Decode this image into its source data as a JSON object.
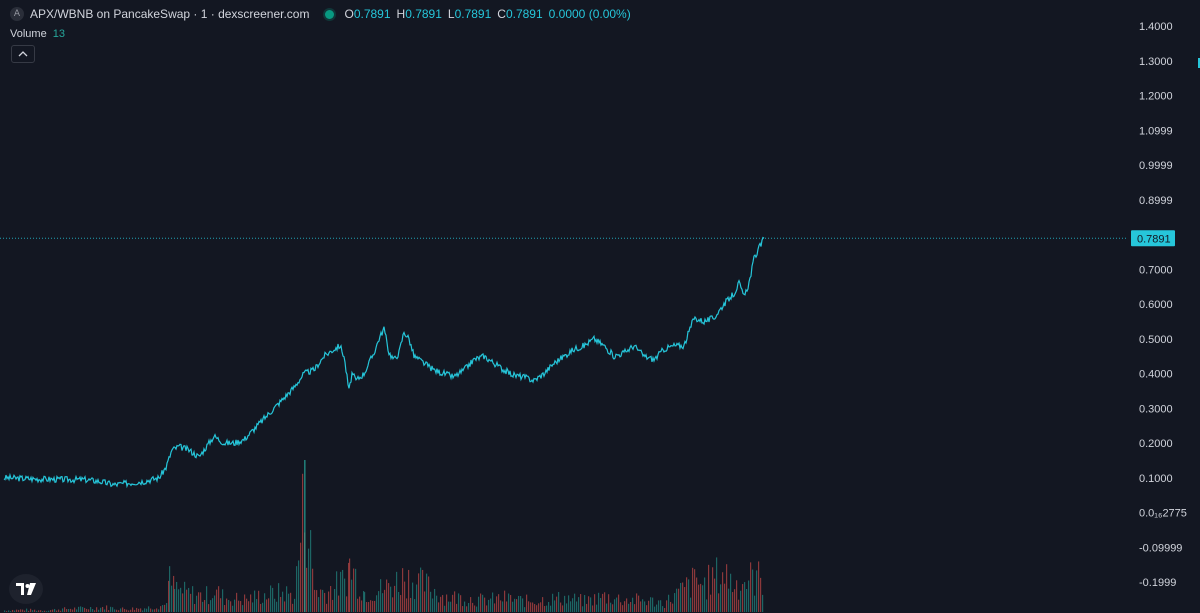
{
  "header": {
    "symbol_badge": "A",
    "title": "APX/WBNB on PancakeSwap · 1 · dexscreener.com",
    "ohlc": [
      {
        "key": "O",
        "value": "0.7891"
      },
      {
        "key": "H",
        "value": "0.7891"
      },
      {
        "key": "L",
        "value": "0.7891"
      },
      {
        "key": "C",
        "value": "0.7891"
      }
    ],
    "change": "0.0000 (0.00%)"
  },
  "volume_legend": {
    "label": "Volume",
    "value": "13"
  },
  "colors": {
    "background": "#131722",
    "price_line": "#26c6da",
    "up": "#26a69a",
    "down": "#ef5350",
    "grid": "#1e2230",
    "axis_text": "#d1d4dc"
  },
  "icons": {
    "collapse": "chevron-up-icon",
    "logo": "tradingview-logo-icon"
  },
  "chart_data": {
    "type": "line",
    "title": "APX/WBNB on PancakeSwap · 1 · dexscreener.com",
    "last_price": "0.7891",
    "y_ticks": [
      "1.4000",
      "1.3000",
      "1.2000",
      "1.0999",
      "0.9999",
      "0.8999",
      "0.7000",
      "0.6000",
      "0.5000",
      "0.4000",
      "0.3000",
      "0.2000",
      "0.1000",
      "0.0₁₆2775",
      "-0.09999",
      "-0.1999"
    ],
    "y_tick_values": [
      1.4,
      1.3,
      1.2,
      1.0999,
      0.9999,
      0.8999,
      0.7,
      0.6,
      0.5,
      0.4,
      0.3,
      0.2,
      0.1,
      0.0,
      -0.09999,
      -0.1999
    ],
    "ylim": [
      -0.22,
      1.44
    ],
    "price_series": {
      "x": [
        0,
        30,
        60,
        80,
        95,
        110,
        125,
        140,
        155,
        162,
        168,
        175,
        185,
        195,
        205,
        210,
        220,
        230,
        240,
        250,
        260,
        270,
        280,
        290,
        300,
        310,
        320,
        330,
        336,
        340,
        345,
        348,
        352,
        360,
        370,
        375,
        380,
        385,
        390,
        395,
        400,
        405,
        410,
        420,
        430,
        440,
        450,
        460,
        470,
        480,
        490,
        500,
        510,
        520,
        530,
        540,
        550,
        560,
        570,
        580,
        590,
        600,
        610,
        620,
        630,
        640,
        650,
        660,
        670,
        680,
        685,
        690,
        700,
        710,
        720,
        730,
        735,
        740,
        745,
        750,
        755,
        760
      ],
      "y": [
        0.1,
        0.097,
        0.095,
        0.095,
        0.09,
        0.08,
        0.085,
        0.09,
        0.1,
        0.13,
        0.18,
        0.19,
        0.18,
        0.16,
        0.2,
        0.22,
        0.2,
        0.2,
        0.21,
        0.24,
        0.27,
        0.3,
        0.33,
        0.36,
        0.4,
        0.41,
        0.45,
        0.47,
        0.48,
        0.45,
        0.35,
        0.4,
        0.38,
        0.4,
        0.46,
        0.5,
        0.53,
        0.46,
        0.44,
        0.46,
        0.52,
        0.5,
        0.45,
        0.43,
        0.41,
        0.4,
        0.39,
        0.41,
        0.44,
        0.45,
        0.43,
        0.41,
        0.395,
        0.39,
        0.38,
        0.4,
        0.43,
        0.45,
        0.47,
        0.48,
        0.5,
        0.48,
        0.45,
        0.46,
        0.48,
        0.45,
        0.44,
        0.47,
        0.48,
        0.48,
        0.52,
        0.56,
        0.55,
        0.56,
        0.6,
        0.63,
        0.66,
        0.62,
        0.66,
        0.73,
        0.76,
        0.7891
      ]
    },
    "volume_series": {
      "x": [
        0,
        20,
        40,
        60,
        80,
        100,
        120,
        140,
        160,
        165,
        170,
        180,
        200,
        210,
        220,
        240,
        260,
        280,
        290,
        300,
        310,
        320,
        340,
        345,
        360,
        380,
        400,
        420,
        440,
        460,
        480,
        500,
        520,
        540,
        560,
        580,
        600,
        620,
        640,
        660,
        680,
        690,
        700,
        710,
        720,
        730,
        740,
        750,
        760
      ],
      "values": [
        2,
        3,
        2,
        4,
        5,
        6,
        4,
        5,
        9,
        40,
        30,
        25,
        20,
        28,
        18,
        16,
        22,
        25,
        20,
        148,
        30,
        25,
        40,
        60,
        25,
        30,
        45,
        35,
        20,
        18,
        15,
        18,
        14,
        16,
        18,
        14,
        20,
        16,
        15,
        12,
        30,
        40,
        35,
        45,
        50,
        35,
        40,
        45,
        42
      ]
    }
  }
}
